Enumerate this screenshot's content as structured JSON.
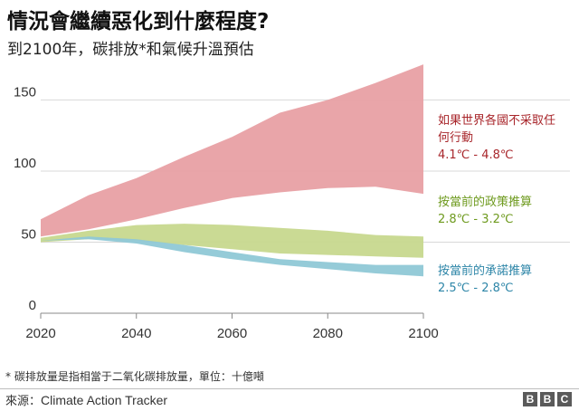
{
  "title": "情況會繼續惡化到什麼程度?",
  "subtitle": "到2100年，碳排放*和氣候升溫預估",
  "footnote": "* 碳排放量是指相當于二氧化碳排放量，單位：十億噸",
  "source": {
    "label": "來源：",
    "name": "Climate Action Tracker"
  },
  "logo": [
    "B",
    "B",
    "C"
  ],
  "colors": {
    "no_action": "#e8a0a4",
    "no_action_text": "#a8262b",
    "current_policy": "#c7d88e",
    "current_policy_text": "#6e9a1e",
    "pledges": "#8fc8d6",
    "pledges_text": "#2e86a8",
    "grid": "#d8d8d8",
    "axis": "#888888"
  },
  "chart_data": {
    "type": "area",
    "x": [
      2020,
      2030,
      2040,
      2050,
      2060,
      2070,
      2080,
      2090,
      2100
    ],
    "xticks": [
      "2020",
      "2040",
      "2060",
      "2080",
      "2100"
    ],
    "yticks": [
      "0",
      "50",
      "100",
      "150"
    ],
    "xlim": [
      2020,
      2100
    ],
    "ylim": [
      0,
      170
    ],
    "grid": true,
    "series": [
      {
        "name": "如果世界各國不采取任何行動",
        "label_lines": [
          "如果世界各國不采取任",
          "何行動"
        ],
        "range": "4.1℃ - 4.8℃",
        "upper": [
          66,
          83,
          95,
          110,
          124,
          141,
          150,
          162,
          175
        ],
        "lower": [
          54,
          59,
          66,
          74,
          81,
          85,
          88,
          89,
          84
        ]
      },
      {
        "name": "按當前的政策推算",
        "label_lines": [
          "按當前的政策推算"
        ],
        "range": "2.8℃ - 3.2℃",
        "upper": [
          53,
          58,
          62,
          63,
          62,
          60,
          58,
          55,
          54
        ],
        "lower": [
          50,
          52,
          51,
          48,
          45,
          42,
          41,
          40,
          39
        ]
      },
      {
        "name": "按當前的承諾推算",
        "label_lines": [
          "按當前的承諾推算"
        ],
        "range": "2.5℃ - 2.8℃",
        "upper": [
          51,
          54,
          52,
          48,
          43,
          38,
          36,
          34,
          34
        ],
        "lower": [
          51,
          52,
          49,
          43,
          38,
          34,
          31,
          28,
          26
        ]
      }
    ]
  }
}
